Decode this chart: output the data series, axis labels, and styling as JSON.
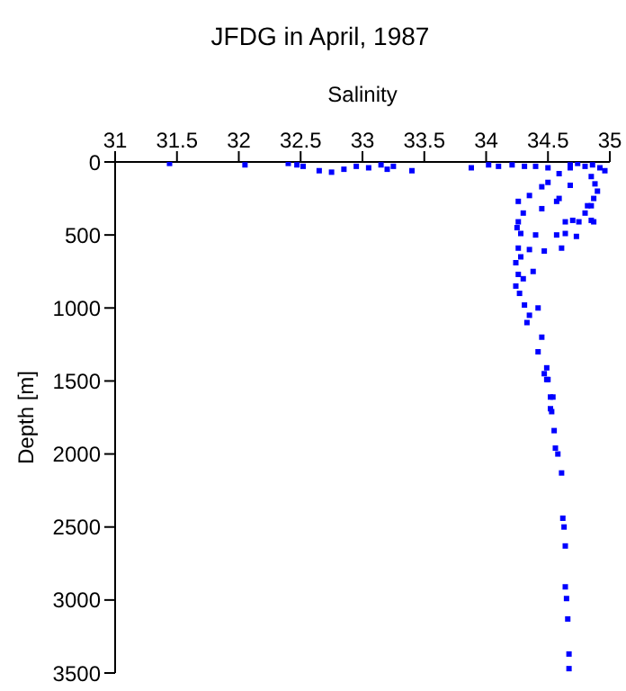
{
  "chart_data": {
    "type": "scatter",
    "title": "JFDG in April, 1987",
    "xlabel": "Salinity",
    "ylabel": "Depth [m]",
    "x": [
      31.44,
      32.05,
      32.4,
      32.47,
      32.52,
      32.65,
      32.75,
      32.85,
      32.95,
      33.05,
      33.15,
      33.2,
      33.25,
      33.4,
      33.88,
      34.02,
      34.1,
      34.21,
      34.31,
      34.4,
      34.5,
      34.68,
      34.74,
      34.8,
      34.86,
      34.92,
      34.96,
      34.85,
      34.88,
      34.9,
      34.87,
      34.85,
      34.8,
      34.82,
      34.85,
      34.87,
      34.64,
      34.7,
      34.75,
      34.68,
      34.59,
      34.5,
      34.45,
      34.35,
      34.26,
      34.26,
      34.28,
      34.26,
      34.24,
      34.26,
      34.24,
      34.31,
      34.42,
      34.33,
      34.45,
      34.42,
      34.47,
      34.5,
      34.52,
      34.52,
      34.57,
      34.64,
      34.73,
      34.47,
      34.61,
      34.4,
      34.35,
      34.68,
      34.59,
      34.57,
      34.45,
      34.3,
      34.25,
      34.28,
      34.3,
      34.38,
      34.27,
      34.35,
      34.49,
      34.49,
      34.54,
      34.53,
      34.55,
      34.56,
      34.58,
      34.61,
      34.62,
      34.63,
      34.64,
      34.64,
      34.65,
      34.66,
      34.67,
      34.67
    ],
    "values": [
      10,
      20,
      10,
      20,
      30,
      60,
      70,
      50,
      30,
      40,
      20,
      50,
      30,
      60,
      40,
      20,
      30,
      20,
      30,
      30,
      40,
      20,
      10,
      30,
      20,
      40,
      60,
      100,
      150,
      200,
      250,
      300,
      350,
      300,
      400,
      410,
      410,
      400,
      410,
      40,
      80,
      140,
      170,
      230,
      270,
      410,
      490,
      590,
      690,
      770,
      850,
      980,
      1000,
      1100,
      1200,
      1300,
      1450,
      1490,
      1610,
      1690,
      500,
      490,
      510,
      610,
      590,
      500,
      600,
      160,
      250,
      270,
      320,
      350,
      450,
      650,
      800,
      750,
      900,
      1050,
      1410,
      1490,
      1610,
      1710,
      1840,
      1960,
      2000,
      2130,
      2440,
      2500,
      2630,
      2910,
      2990,
      3130,
      3370,
      3470
    ],
    "color": "#0000ff",
    "marker": "square",
    "xlim": [
      31,
      35
    ],
    "xticks": [
      31,
      31.5,
      32,
      32.5,
      33,
      33.5,
      34,
      34.5,
      35
    ],
    "ylim": [
      3500,
      0
    ],
    "yticks": [
      0,
      500,
      1000,
      1500,
      2000,
      2500,
      3000,
      3500
    ]
  }
}
